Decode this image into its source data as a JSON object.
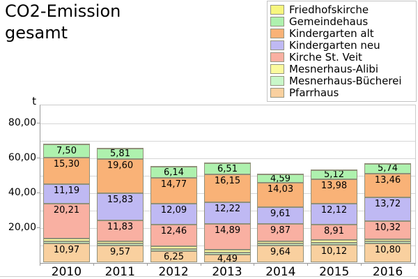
{
  "title": {
    "line1": "CO2-Emission",
    "line2": "gesamt"
  },
  "y_axis": {
    "unit": "t",
    "ticks": [
      {
        "value": 80,
        "label": "80,00"
      },
      {
        "value": 60,
        "label": "60,00"
      },
      {
        "value": 40,
        "label": "40,00"
      },
      {
        "value": 20,
        "label": "20,00"
      }
    ]
  },
  "legend": {
    "items": [
      {
        "label": "Friedhofskirche",
        "color": "#f7f67e"
      },
      {
        "label": "Gemeindehaus",
        "color": "#aef1ae"
      },
      {
        "label": "Kindergarten alt",
        "color": "#f9b277"
      },
      {
        "label": "Kindergarten neu",
        "color": "#bfb9f3"
      },
      {
        "label": "Kirche St. Veit",
        "color": "#f9b0a2"
      },
      {
        "label": "Mesnerhaus-Alibi",
        "color": "#fbfa9e"
      },
      {
        "label": "Mesnerhaus-Bücherei",
        "color": "#c9f7c9"
      },
      {
        "label": "Pfarrhaus",
        "color": "#f9d09f"
      }
    ]
  },
  "chart_data": {
    "type": "bar",
    "stacked": true,
    "stack_order": "bottom-to-top",
    "title": "CO2-Emission gesamt",
    "ylabel": "t",
    "ylim": [
      0,
      90
    ],
    "grid": true,
    "gridline_step": 10,
    "legend_position": "top-right",
    "categories": [
      "2010",
      "2011",
      "2012",
      "2013",
      "2014",
      "2015",
      "2016"
    ],
    "series": [
      {
        "name": "Pfarrhaus",
        "color": "#f9d09f",
        "values": [
          10.97,
          9.57,
          6.25,
          4.49,
          9.64,
          10.12,
          10.8
        ],
        "labels": [
          "10,97",
          "9,57",
          "6,25",
          "4,49",
          "9,64",
          "10,12",
          "10,80"
        ]
      },
      {
        "name": "Mesnerhaus-Bücherei",
        "color": "#c9f7c9",
        "estimated": true,
        "values": [
          1.2,
          1.2,
          1.4,
          1.3,
          1.2,
          1.2,
          1.2
        ],
        "labels": null
      },
      {
        "name": "Mesnerhaus-Alibi",
        "color": "#fbfa9e",
        "estimated": true,
        "values": [
          1.3,
          1.3,
          1.5,
          1.4,
          1.3,
          1.3,
          1.3
        ],
        "labels": null
      },
      {
        "name": "Kirche St. Veit",
        "color": "#f9b0a2",
        "values": [
          20.21,
          11.83,
          12.46,
          14.89,
          9.87,
          8.91,
          10.32
        ],
        "labels": [
          "20,21",
          "11,83",
          "12,46",
          "14,89",
          "9,87",
          "8,91",
          "10,32"
        ]
      },
      {
        "name": "Kindergarten neu",
        "color": "#bfb9f3",
        "values": [
          11.19,
          15.83,
          12.09,
          12.22,
          9.61,
          12.12,
          13.72
        ],
        "labels": [
          "11,19",
          "15,83",
          "12,09",
          "12,22",
          "9,61",
          "12,12",
          "13,72"
        ]
      },
      {
        "name": "Kindergarten alt",
        "color": "#f9b277",
        "values": [
          15.3,
          19.6,
          14.77,
          16.15,
          14.03,
          13.98,
          13.46
        ],
        "labels": [
          "15,30",
          "19,60",
          "14,77",
          "16,15",
          "14,03",
          "13,98",
          "13,46"
        ]
      },
      {
        "name": "Gemeindehaus",
        "color": "#aef1ae",
        "values": [
          7.5,
          5.81,
          6.14,
          6.51,
          4.59,
          5.12,
          5.74
        ],
        "labels": [
          "7,50",
          "5,81",
          "6,14",
          "6,51",
          "4,59",
          "5,12",
          "5,74"
        ]
      },
      {
        "name": "Friedhofskirche",
        "color": "#f7f67e",
        "estimated": true,
        "values": [
          0.4,
          0.4,
          0.4,
          0.4,
          0.4,
          0.4,
          0.4
        ],
        "labels": null
      }
    ]
  }
}
